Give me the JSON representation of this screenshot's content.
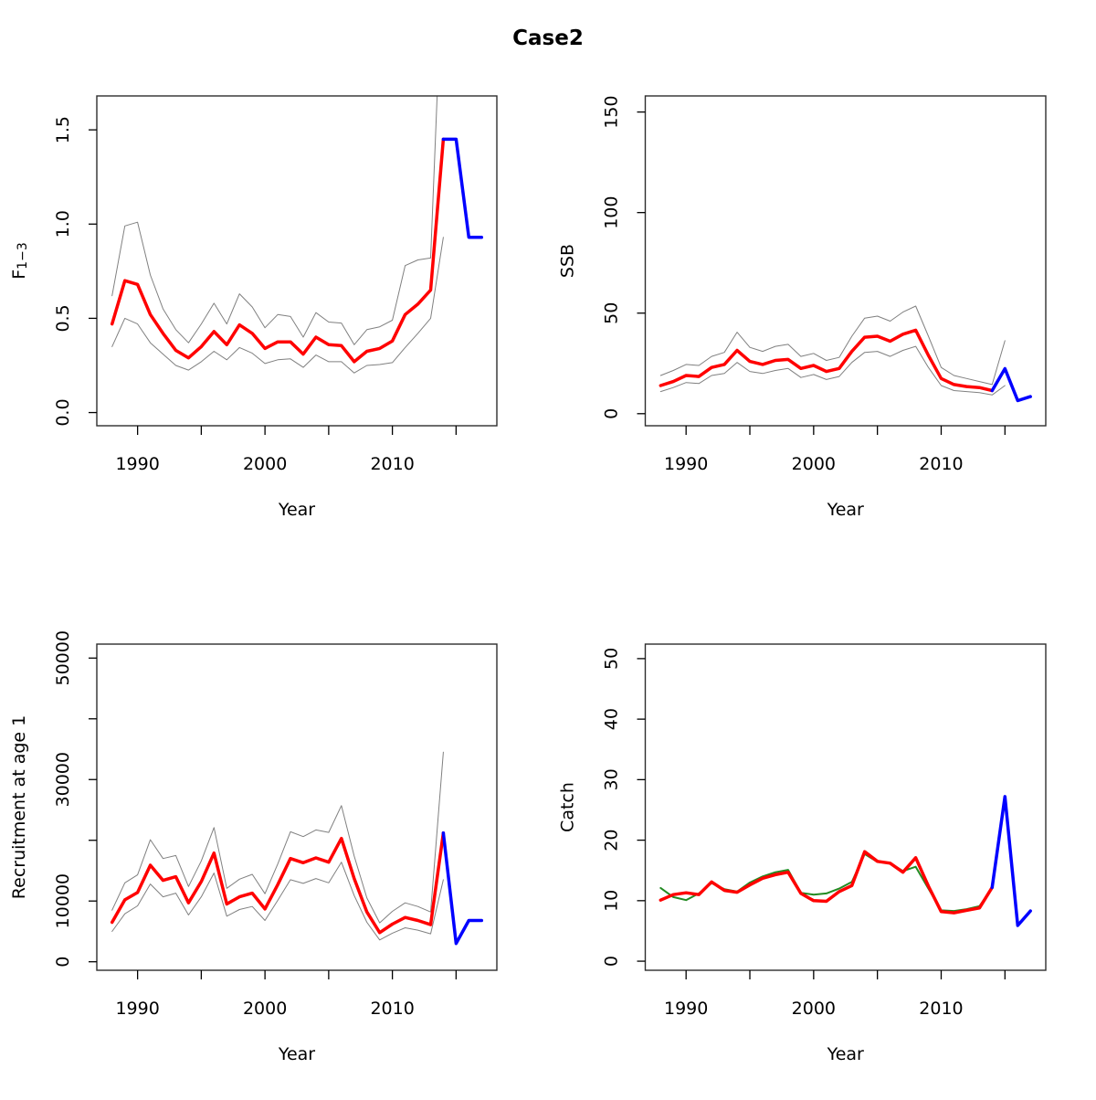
{
  "title": "Case2",
  "figure": {
    "background": "#ffffff",
    "border_color": "#2d2d2d",
    "tick_color": "#000000",
    "text_color": "#000000"
  },
  "colors": {
    "estimate": "#ff0000",
    "forecast": "#0000ff",
    "observed": "#228b22",
    "confidence_band": "#808080"
  },
  "chart_data": [
    {
      "id": "f13",
      "type": "line",
      "position": "top-left",
      "title": "",
      "xlabel": "Year",
      "ylabel": "F",
      "ylabel_subscript": "1−3",
      "xlim": [
        1986.8,
        2018.2
      ],
      "ylim": [
        -0.07,
        1.68
      ],
      "xticks": [
        1990,
        1995,
        2000,
        2005,
        2010,
        2015
      ],
      "xtick_labels": [
        "1990",
        "",
        "2000",
        "",
        "2010",
        ""
      ],
      "yticks": [
        0,
        0.5,
        1,
        1.5
      ],
      "ytick_labels": [
        "0.0",
        "0.5",
        "1.0",
        "1.5"
      ],
      "grid": false,
      "legend": false,
      "series": [
        {
          "name": "ci-upper",
          "role": "confidence-upper",
          "color": "#808080",
          "width": 1,
          "start_year": 1988,
          "values": [
            0.62,
            0.99,
            1.01,
            0.73,
            0.55,
            0.44,
            0.37,
            0.47,
            0.58,
            0.47,
            0.63,
            0.56,
            0.45,
            0.52,
            0.51,
            0.4,
            0.53,
            0.48,
            0.475,
            0.36,
            0.44,
            0.455,
            0.49,
            0.78,
            0.81,
            0.82,
            2.5
          ]
        },
        {
          "name": "ci-lower",
          "role": "confidence-lower",
          "color": "#808080",
          "width": 1,
          "start_year": 1988,
          "values": [
            0.35,
            0.5,
            0.47,
            0.37,
            0.31,
            0.25,
            0.225,
            0.27,
            0.325,
            0.28,
            0.345,
            0.315,
            0.26,
            0.28,
            0.285,
            0.24,
            0.305,
            0.27,
            0.27,
            0.21,
            0.25,
            0.255,
            0.265,
            0.345,
            0.42,
            0.5,
            0.93
          ]
        },
        {
          "name": "estimate",
          "role": "estimate",
          "color": "#ff0000",
          "width": 3.5,
          "start_year": 1988,
          "values": [
            0.47,
            0.7,
            0.68,
            0.52,
            0.42,
            0.33,
            0.29,
            0.35,
            0.43,
            0.36,
            0.465,
            0.42,
            0.34,
            0.375,
            0.375,
            0.31,
            0.4,
            0.36,
            0.355,
            0.27,
            0.325,
            0.34,
            0.38,
            0.52,
            0.575,
            0.65,
            1.45
          ]
        },
        {
          "name": "forecast",
          "role": "forecast",
          "color": "#0000ff",
          "width": 3.5,
          "start_year": 2014,
          "values": [
            1.45,
            1.45,
            0.93,
            0.93
          ]
        }
      ]
    },
    {
      "id": "ssb",
      "type": "line",
      "position": "top-right",
      "title": "",
      "xlabel": "Year",
      "ylabel": "SSB",
      "ylabel_subscript": "",
      "xlim": [
        1986.8,
        2018.2
      ],
      "ylim": [
        -6,
        158
      ],
      "xticks": [
        1990,
        1995,
        2000,
        2005,
        2010,
        2015
      ],
      "xtick_labels": [
        "1990",
        "",
        "2000",
        "",
        "2010",
        ""
      ],
      "yticks": [
        0,
        50,
        100,
        150
      ],
      "ytick_labels": [
        "0",
        "50",
        "100",
        "150"
      ],
      "grid": false,
      "legend": false,
      "series": [
        {
          "name": "ci-upper",
          "role": "confidence-upper",
          "color": "#808080",
          "width": 1,
          "start_year": 1988,
          "values": [
            19,
            21.5,
            24.5,
            24,
            28.5,
            30.5,
            40.5,
            33,
            31,
            33.5,
            34.5,
            28.5,
            30,
            26.5,
            28,
            38.5,
            47.5,
            48.5,
            46,
            50.5,
            53.5,
            38.5,
            23,
            19,
            17.5,
            16,
            14.5,
            36.3
          ]
        },
        {
          "name": "ci-lower",
          "role": "confidence-lower",
          "color": "#808080",
          "width": 1,
          "start_year": 1988,
          "values": [
            11,
            13,
            15.5,
            15,
            19,
            20,
            25.5,
            21,
            20,
            21.5,
            22.5,
            18,
            19.5,
            17,
            18.5,
            25.5,
            30.5,
            31,
            28.5,
            31.5,
            33.5,
            23,
            14,
            11.5,
            11,
            10.5,
            9.3,
            14
          ]
        },
        {
          "name": "estimate",
          "role": "estimate",
          "color": "#ff0000",
          "width": 3.5,
          "start_year": 1988,
          "values": [
            14,
            16,
            19,
            18.5,
            23,
            24.5,
            31.5,
            26,
            24.5,
            26.5,
            27,
            22.5,
            24,
            21,
            22.5,
            31,
            38,
            38.5,
            36,
            39.5,
            41.5,
            29,
            17.5,
            14.5,
            13.5,
            13,
            11.5
          ]
        },
        {
          "name": "forecast",
          "role": "forecast",
          "color": "#0000ff",
          "width": 3.5,
          "start_year": 2014,
          "values": [
            11.5,
            22.4,
            6.5,
            8.5
          ]
        }
      ]
    },
    {
      "id": "recruitment",
      "type": "line",
      "position": "bottom-left",
      "title": "",
      "xlabel": "Year",
      "ylabel": "Recruitment at age 1",
      "ylabel_subscript": "",
      "xlim": [
        1986.8,
        2018.2
      ],
      "ylim": [
        -1400,
        52300
      ],
      "xticks": [
        1990,
        1995,
        2000,
        2005,
        2010,
        2015
      ],
      "xtick_labels": [
        "1990",
        "",
        "2000",
        "",
        "2010",
        ""
      ],
      "yticks": [
        0,
        10000,
        20000,
        30000,
        40000,
        50000
      ],
      "ytick_labels": [
        "0",
        "10000",
        "",
        "30000",
        "",
        "50000"
      ],
      "grid": false,
      "legend": false,
      "series": [
        {
          "name": "ci-upper",
          "role": "confidence-upper",
          "color": "#808080",
          "width": 1,
          "start_year": 1988,
          "values": [
            8500,
            13000,
            14300,
            20100,
            17000,
            17500,
            12400,
            16600,
            22100,
            12100,
            13600,
            14400,
            11200,
            16100,
            21400,
            20600,
            21700,
            21300,
            25700,
            17400,
            10500,
            6400,
            8300,
            9700,
            9100,
            8200,
            34500
          ]
        },
        {
          "name": "ci-lower",
          "role": "confidence-lower",
          "color": "#808080",
          "width": 1,
          "start_year": 1988,
          "values": [
            5000,
            7900,
            9200,
            12800,
            10700,
            11300,
            7700,
            10700,
            14600,
            7500,
            8600,
            9100,
            6800,
            10100,
            13500,
            12900,
            13700,
            13000,
            16400,
            10900,
            6500,
            3600,
            4700,
            5600,
            5200,
            4600,
            13500
          ]
        },
        {
          "name": "estimate",
          "role": "estimate",
          "color": "#ff0000",
          "width": 3.5,
          "start_year": 1988,
          "values": [
            6500,
            10200,
            11400,
            15900,
            13400,
            14000,
            9700,
            13200,
            17900,
            9500,
            10700,
            11300,
            8700,
            12700,
            17000,
            16300,
            17100,
            16400,
            20300,
            13700,
            8200,
            4800,
            6200,
            7300,
            6800,
            6100,
            21200
          ]
        },
        {
          "name": "forecast",
          "role": "forecast",
          "color": "#0000ff",
          "width": 3.5,
          "start_year": 2014,
          "values": [
            21200,
            3000,
            6800,
            6800
          ]
        }
      ]
    },
    {
      "id": "catch",
      "type": "line",
      "position": "bottom-right",
      "title": "",
      "xlabel": "Year",
      "ylabel": "Catch",
      "ylabel_subscript": "",
      "xlim": [
        1986.8,
        2018.2
      ],
      "ylim": [
        -1.5,
        52.4
      ],
      "xticks": [
        1990,
        1995,
        2000,
        2005,
        2010,
        2015
      ],
      "xtick_labels": [
        "1990",
        "",
        "2000",
        "",
        "2010",
        ""
      ],
      "yticks": [
        0,
        10,
        20,
        30,
        40,
        50
      ],
      "ytick_labels": [
        "0",
        "10",
        "20",
        "30",
        "40",
        "50"
      ],
      "grid": false,
      "legend": false,
      "series": [
        {
          "name": "observed",
          "role": "observed",
          "color": "#228b22",
          "width": 2,
          "start_year": 1988,
          "values": [
            12.1,
            10.6,
            10.1,
            11.2,
            12.9,
            11.9,
            11.5,
            13.0,
            14.0,
            14.7,
            15.1,
            11.3,
            11.0,
            11.2,
            12.0,
            13.1,
            17.7,
            16.4,
            16.2,
            14.9,
            15.6,
            12.0,
            8.4,
            8.3,
            8.6,
            9.1,
            12.1
          ]
        },
        {
          "name": "estimate",
          "role": "estimate",
          "color": "#ff0000",
          "width": 3.5,
          "start_year": 1988,
          "values": [
            10.1,
            11.0,
            11.3,
            11.0,
            13.1,
            11.7,
            11.4,
            12.6,
            13.7,
            14.3,
            14.7,
            11.2,
            10.0,
            9.9,
            11.5,
            12.5,
            18.1,
            16.5,
            16.2,
            14.7,
            17.1,
            12.4,
            8.2,
            8.0,
            8.4,
            8.8,
            12.2
          ]
        },
        {
          "name": "forecast",
          "role": "forecast",
          "color": "#0000ff",
          "width": 3.5,
          "start_year": 2014,
          "values": [
            12.2,
            27.2,
            5.9,
            8.3
          ]
        }
      ]
    }
  ]
}
